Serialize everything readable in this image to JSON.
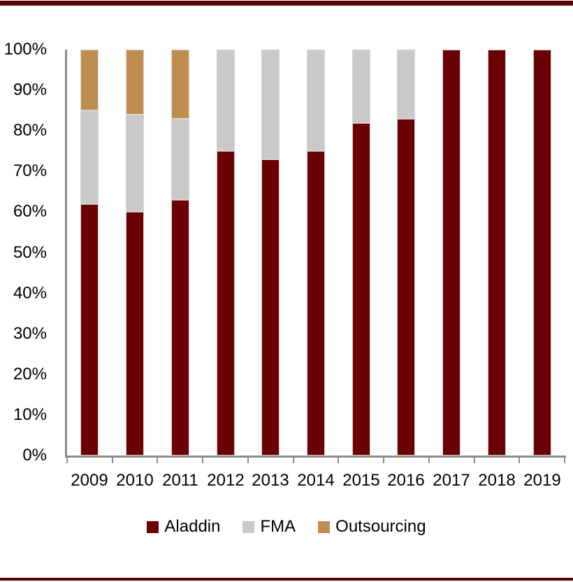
{
  "page": {
    "background": "#ffffff",
    "rule_color": "#5a0103"
  },
  "chart_data": {
    "type": "bar",
    "stacked": true,
    "stack_unit": "percent",
    "title": "",
    "categories": [
      "2009",
      "2010",
      "2011",
      "2012",
      "2013",
      "2014",
      "2015",
      "2016",
      "2017",
      "2018",
      "2019"
    ],
    "series": [
      {
        "name": "Aladdin",
        "color": "#6a0104",
        "values": [
          62,
          60,
          63,
          75,
          73,
          75,
          82,
          83,
          100,
          100,
          100
        ]
      },
      {
        "name": "FMA",
        "color": "#c9c9c9",
        "values": [
          23,
          24,
          20,
          25,
          27,
          25,
          18,
          17,
          0,
          0,
          0
        ]
      },
      {
        "name": "Outsourcing",
        "color": "#bf8e4e",
        "values": [
          15,
          16,
          17,
          0,
          0,
          0,
          0,
          0,
          0,
          0,
          0
        ]
      }
    ],
    "y_ticks": [
      "0%",
      "10%",
      "20%",
      "30%",
      "40%",
      "50%",
      "60%",
      "70%",
      "80%",
      "90%",
      "100%"
    ],
    "y_tick_step": 10,
    "ylim": [
      0,
      100
    ],
    "xlabel": "",
    "ylabel": "",
    "grid": false,
    "legend_position": "bottom",
    "axis_color": "#8c8c8c",
    "segment_outline_color": "#dcd3d3"
  }
}
